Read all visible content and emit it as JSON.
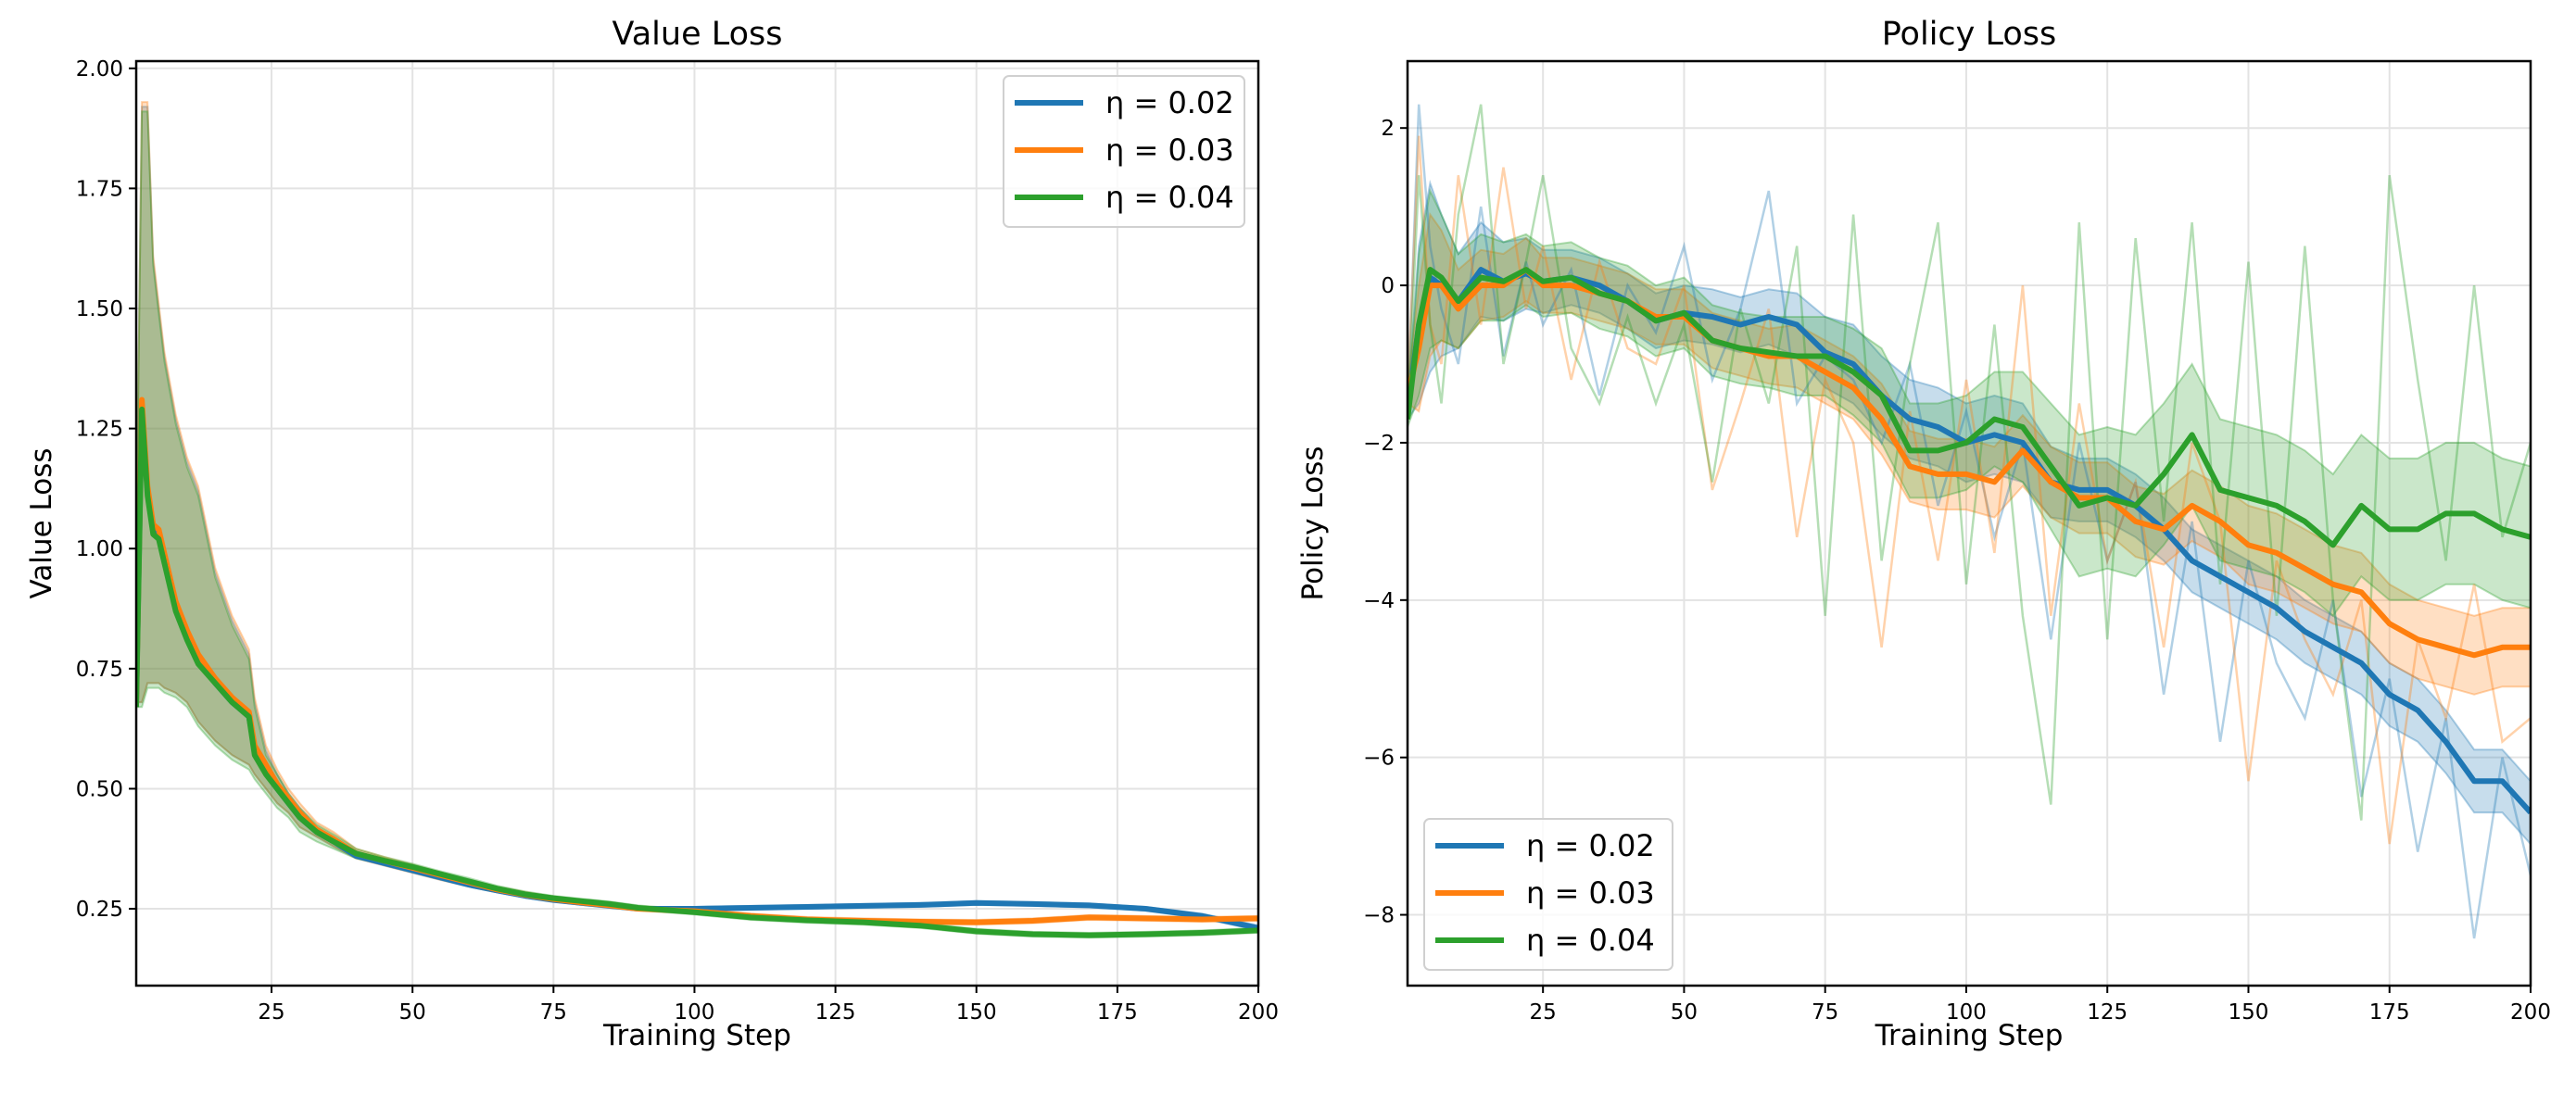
{
  "colors": {
    "eta_002": "#1f77b4",
    "eta_003": "#ff7f0e",
    "eta_004": "#2ca02c"
  },
  "chart_data": [
    {
      "type": "line",
      "title": "Value Loss",
      "xlabel": "Training Step",
      "ylabel": "Value Loss",
      "xlim": [
        1,
        200
      ],
      "ylim": [
        0.09,
        2.015
      ],
      "grid": true,
      "legend_position": "top-right",
      "xticks": [
        25,
        50,
        75,
        100,
        125,
        150,
        175,
        200
      ],
      "xtick_labels": [
        "25",
        "50",
        "75",
        "100",
        "125",
        "150",
        "175",
        "200"
      ],
      "yticks": [
        0.25,
        0.5,
        0.75,
        1.0,
        1.25,
        1.5,
        1.75,
        2.0
      ],
      "ytick_labels": [
        "0.25",
        "0.50",
        "0.75",
        "1.00",
        "1.25",
        "1.50",
        "1.75",
        "2.00"
      ],
      "x": [
        1,
        2,
        3,
        4,
        5,
        6,
        8,
        10,
        12,
        15,
        18,
        21,
        22,
        24,
        26,
        28,
        30,
        33,
        36,
        40,
        45,
        50,
        55,
        60,
        65,
        70,
        75,
        80,
        85,
        90,
        100,
        110,
        120,
        130,
        140,
        150,
        160,
        170,
        180,
        190,
        200
      ],
      "series": [
        {
          "name": "η = 0.02",
          "color": "#1f77b4",
          "mean": [
            0.68,
            1.3,
            1.12,
            1.04,
            1.03,
            0.98,
            0.88,
            0.82,
            0.77,
            0.72,
            0.68,
            0.65,
            0.58,
            0.54,
            0.5,
            0.47,
            0.44,
            0.41,
            0.39,
            0.36,
            0.345,
            0.33,
            0.315,
            0.3,
            0.288,
            0.277,
            0.268,
            0.262,
            0.256,
            0.25,
            0.25,
            0.252,
            0.254,
            0.256,
            0.258,
            0.262,
            0.26,
            0.257,
            0.25,
            0.235,
            0.21
          ],
          "lower": [
            0.68,
            0.68,
            0.72,
            0.72,
            0.72,
            0.71,
            0.7,
            0.68,
            0.64,
            0.6,
            0.57,
            0.55,
            0.53,
            0.5,
            0.47,
            0.45,
            0.42,
            0.4,
            0.38,
            0.355,
            0.34,
            0.325,
            0.31,
            0.296,
            0.284,
            0.273,
            0.265,
            0.258,
            0.252,
            0.247,
            0.246,
            0.248,
            0.25,
            0.252,
            0.254,
            0.258,
            0.256,
            0.253,
            0.246,
            0.23,
            0.205
          ],
          "upper": [
            1.0,
            1.92,
            1.92,
            1.6,
            1.5,
            1.4,
            1.27,
            1.18,
            1.12,
            0.95,
            0.85,
            0.78,
            0.68,
            0.58,
            0.53,
            0.49,
            0.46,
            0.42,
            0.4,
            0.37,
            0.352,
            0.336,
            0.32,
            0.305,
            0.292,
            0.281,
            0.272,
            0.266,
            0.26,
            0.254,
            0.254,
            0.256,
            0.258,
            0.26,
            0.262,
            0.266,
            0.264,
            0.261,
            0.254,
            0.24,
            0.215
          ]
        },
        {
          "name": "η = 0.03",
          "color": "#ff7f0e",
          "mean": [
            0.68,
            1.31,
            1.13,
            1.05,
            1.04,
            0.99,
            0.89,
            0.83,
            0.78,
            0.73,
            0.69,
            0.66,
            0.59,
            0.55,
            0.51,
            0.48,
            0.45,
            0.415,
            0.395,
            0.365,
            0.35,
            0.335,
            0.32,
            0.305,
            0.29,
            0.279,
            0.27,
            0.263,
            0.257,
            0.25,
            0.245,
            0.235,
            0.228,
            0.225,
            0.223,
            0.222,
            0.225,
            0.232,
            0.23,
            0.228,
            0.23
          ],
          "lower": [
            0.68,
            0.68,
            0.72,
            0.72,
            0.72,
            0.71,
            0.7,
            0.68,
            0.64,
            0.6,
            0.57,
            0.55,
            0.53,
            0.5,
            0.47,
            0.45,
            0.42,
            0.4,
            0.38,
            0.355,
            0.34,
            0.325,
            0.31,
            0.296,
            0.284,
            0.273,
            0.265,
            0.258,
            0.252,
            0.246,
            0.24,
            0.23,
            0.223,
            0.22,
            0.218,
            0.217,
            0.22,
            0.227,
            0.225,
            0.223,
            0.225
          ],
          "upper": [
            1.0,
            1.93,
            1.93,
            1.61,
            1.51,
            1.41,
            1.28,
            1.19,
            1.13,
            0.96,
            0.86,
            0.79,
            0.69,
            0.59,
            0.54,
            0.5,
            0.47,
            0.43,
            0.41,
            0.375,
            0.358,
            0.342,
            0.326,
            0.31,
            0.296,
            0.285,
            0.275,
            0.268,
            0.262,
            0.255,
            0.25,
            0.24,
            0.233,
            0.23,
            0.228,
            0.227,
            0.23,
            0.237,
            0.235,
            0.233,
            0.235
          ]
        },
        {
          "name": "η = 0.04",
          "color": "#2ca02c",
          "mean": [
            0.67,
            1.29,
            1.11,
            1.03,
            1.02,
            0.97,
            0.87,
            0.81,
            0.76,
            0.72,
            0.68,
            0.65,
            0.57,
            0.53,
            0.5,
            0.47,
            0.44,
            0.41,
            0.39,
            0.365,
            0.35,
            0.337,
            0.322,
            0.307,
            0.292,
            0.28,
            0.272,
            0.266,
            0.26,
            0.252,
            0.243,
            0.232,
            0.226,
            0.222,
            0.215,
            0.203,
            0.197,
            0.195,
            0.197,
            0.2,
            0.205
          ],
          "lower": [
            0.67,
            0.67,
            0.71,
            0.71,
            0.71,
            0.7,
            0.69,
            0.67,
            0.63,
            0.59,
            0.56,
            0.54,
            0.52,
            0.49,
            0.46,
            0.44,
            0.41,
            0.39,
            0.375,
            0.355,
            0.342,
            0.33,
            0.316,
            0.3,
            0.286,
            0.275,
            0.267,
            0.261,
            0.255,
            0.247,
            0.238,
            0.227,
            0.221,
            0.217,
            0.21,
            0.198,
            0.192,
            0.19,
            0.192,
            0.195,
            0.2
          ],
          "upper": [
            0.99,
            1.91,
            1.91,
            1.59,
            1.49,
            1.39,
            1.26,
            1.17,
            1.11,
            0.94,
            0.84,
            0.77,
            0.67,
            0.57,
            0.53,
            0.49,
            0.46,
            0.425,
            0.405,
            0.375,
            0.358,
            0.344,
            0.328,
            0.314,
            0.298,
            0.286,
            0.277,
            0.271,
            0.265,
            0.257,
            0.248,
            0.237,
            0.231,
            0.227,
            0.22,
            0.208,
            0.202,
            0.2,
            0.202,
            0.205,
            0.21
          ]
        }
      ]
    },
    {
      "type": "line",
      "title": "Policy Loss",
      "xlabel": "Training Step",
      "ylabel": "Policy Loss",
      "xlim": [
        1,
        200
      ],
      "ylim": [
        -8.9,
        2.85
      ],
      "grid": true,
      "legend_position": "bottom-left",
      "xticks": [
        25,
        50,
        75,
        100,
        125,
        150,
        175,
        200
      ],
      "xtick_labels": [
        "25",
        "50",
        "75",
        "100",
        "125",
        "150",
        "175",
        "200"
      ],
      "yticks": [
        -8,
        -6,
        -4,
        -2,
        0,
        2
      ],
      "ytick_labels": [
        "−8",
        "−6",
        "−4",
        "−2",
        "0",
        "2"
      ],
      "x": [
        1,
        3,
        5,
        7,
        10,
        14,
        18,
        22,
        25,
        30,
        35,
        40,
        45,
        50,
        55,
        60,
        65,
        70,
        75,
        80,
        85,
        90,
        95,
        100,
        105,
        110,
        115,
        120,
        125,
        130,
        135,
        140,
        145,
        150,
        155,
        160,
        165,
        170,
        175,
        180,
        185,
        190,
        195,
        200
      ],
      "series": [
        {
          "name": "η = 0.02",
          "color": "#1f77b4",
          "mean": [
            -1.6,
            -0.5,
            0.1,
            0.0,
            -0.2,
            0.2,
            0.05,
            0.15,
            0.05,
            0.1,
            0.0,
            -0.2,
            -0.45,
            -0.35,
            -0.4,
            -0.5,
            -0.4,
            -0.5,
            -0.85,
            -1.0,
            -1.4,
            -1.7,
            -1.8,
            -2.0,
            -1.9,
            -2.0,
            -2.5,
            -2.6,
            -2.6,
            -2.8,
            -3.1,
            -3.5,
            -3.7,
            -3.9,
            -4.1,
            -4.4,
            -4.6,
            -4.8,
            -5.2,
            -5.4,
            -5.8,
            -6.3,
            -6.3,
            -6.7
          ],
          "band": [
            0.1,
            1.0,
            1.2,
            0.9,
            0.6,
            0.6,
            0.5,
            0.45,
            0.4,
            0.35,
            0.35,
            0.35,
            0.35,
            0.35,
            0.35,
            0.35,
            0.35,
            0.4,
            0.45,
            0.5,
            0.5,
            0.5,
            0.5,
            0.5,
            0.5,
            0.5,
            0.45,
            0.4,
            0.4,
            0.4,
            0.4,
            0.4,
            0.4,
            0.4,
            0.4,
            0.4,
            0.4,
            0.4,
            0.4,
            0.4,
            0.4,
            0.4,
            0.4,
            0.4
          ],
          "raw": [
            -1.6,
            2.3,
            0.5,
            -0.3,
            -1.0,
            1.0,
            -0.9,
            0.3,
            -0.5,
            0.2,
            -1.4,
            0.0,
            -0.6,
            0.5,
            -1.2,
            -0.3,
            1.2,
            -1.5,
            -0.9,
            -1.2,
            -2.0,
            -1.0,
            -2.8,
            -1.6,
            -3.2,
            -2.0,
            -4.5,
            -2.0,
            -3.5,
            -2.5,
            -5.2,
            -3.0,
            -5.8,
            -3.5,
            -4.8,
            -5.5,
            -4.0,
            -6.5,
            -5.0,
            -7.2,
            -5.5,
            -8.3,
            -6.0,
            -7.5
          ]
        },
        {
          "name": "η = 0.03",
          "color": "#ff7f0e",
          "mean": [
            -1.4,
            -0.8,
            0.0,
            0.0,
            -0.3,
            0.0,
            0.0,
            0.2,
            0.0,
            0.0,
            -0.1,
            -0.2,
            -0.4,
            -0.4,
            -0.7,
            -0.8,
            -0.9,
            -0.9,
            -1.1,
            -1.3,
            -1.7,
            -2.3,
            -2.4,
            -2.4,
            -2.5,
            -2.1,
            -2.5,
            -2.7,
            -2.7,
            -3.0,
            -3.1,
            -2.8,
            -3.0,
            -3.3,
            -3.4,
            -3.6,
            -3.8,
            -3.9,
            -4.3,
            -4.5,
            -4.6,
            -4.7,
            -4.6,
            -4.6
          ],
          "band": [
            0.1,
            0.8,
            0.9,
            0.7,
            0.5,
            0.45,
            0.4,
            0.4,
            0.35,
            0.35,
            0.35,
            0.35,
            0.35,
            0.35,
            0.35,
            0.35,
            0.35,
            0.4,
            0.4,
            0.4,
            0.45,
            0.45,
            0.45,
            0.45,
            0.45,
            0.45,
            0.45,
            0.45,
            0.45,
            0.45,
            0.45,
            0.45,
            0.45,
            0.5,
            0.5,
            0.5,
            0.5,
            0.5,
            0.5,
            0.5,
            0.5,
            0.5,
            0.5,
            0.5
          ],
          "raw": [
            -1.4,
            1.9,
            -0.5,
            -1.0,
            1.4,
            -0.5,
            1.5,
            -0.3,
            0.5,
            -1.2,
            0.3,
            -0.8,
            -1.0,
            0.0,
            -2.6,
            -1.5,
            -0.3,
            -3.2,
            -1.2,
            -2.0,
            -4.6,
            -1.6,
            -3.5,
            -1.2,
            -3.4,
            0.0,
            -4.2,
            -1.5,
            -3.5,
            -2.5,
            -4.6,
            -2.0,
            -3.0,
            -6.3,
            -3.5,
            -4.5,
            -5.2,
            -4.0,
            -7.1,
            -4.5,
            -5.5,
            -3.8,
            -5.8,
            -5.5
          ]
        },
        {
          "name": "η = 0.04",
          "color": "#2ca02c",
          "mean": [
            -1.7,
            -0.5,
            0.2,
            0.1,
            -0.2,
            0.1,
            0.05,
            0.2,
            0.05,
            0.1,
            -0.1,
            -0.2,
            -0.45,
            -0.35,
            -0.7,
            -0.8,
            -0.85,
            -0.9,
            -0.9,
            -1.1,
            -1.4,
            -2.1,
            -2.1,
            -2.0,
            -1.7,
            -1.8,
            -2.3,
            -2.8,
            -2.7,
            -2.8,
            -2.4,
            -1.9,
            -2.6,
            -2.7,
            -2.8,
            -3.0,
            -3.3,
            -2.8,
            -3.1,
            -3.1,
            -2.9,
            -2.9,
            -3.1,
            -3.2
          ],
          "band": [
            0.1,
            0.9,
            1.0,
            0.8,
            0.6,
            0.55,
            0.5,
            0.45,
            0.45,
            0.45,
            0.45,
            0.45,
            0.45,
            0.45,
            0.45,
            0.45,
            0.45,
            0.5,
            0.5,
            0.55,
            0.6,
            0.6,
            0.6,
            0.6,
            0.6,
            0.7,
            0.8,
            0.9,
            0.9,
            0.9,
            0.9,
            0.9,
            0.9,
            0.9,
            0.9,
            0.9,
            0.9,
            0.9,
            0.9,
            0.9,
            0.9,
            0.9,
            0.9,
            0.9
          ],
          "raw": [
            -1.7,
            1.4,
            -0.5,
            -1.5,
            0.9,
            2.3,
            -1.0,
            0.3,
            1.4,
            -0.8,
            -1.5,
            -0.4,
            -1.5,
            -0.5,
            -2.5,
            -0.3,
            -1.5,
            0.5,
            -4.2,
            0.9,
            -3.5,
            -1.0,
            0.8,
            -3.8,
            -0.5,
            -4.2,
            -6.6,
            0.8,
            -4.5,
            0.6,
            -3.0,
            0.8,
            -3.8,
            0.3,
            -4.2,
            0.5,
            -4.0,
            -6.8,
            1.4,
            -1.2,
            -3.5,
            0.0,
            -3.2,
            -2.0
          ]
        }
      ]
    }
  ]
}
